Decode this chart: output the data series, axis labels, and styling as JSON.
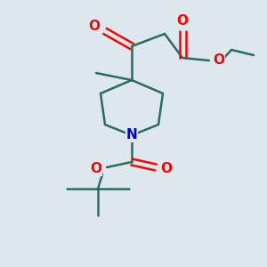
{
  "bg_color": "#dce8ee",
  "bond_color": "#2d6b5e",
  "oxygen_color": "#ff0000",
  "nitrogen_color": "#0000cc",
  "lw": 1.8,
  "figsize": [
    3.0,
    3.0
  ],
  "dpi": 100,
  "xlim": [
    0,
    300
  ],
  "ylim": [
    0,
    300
  ]
}
